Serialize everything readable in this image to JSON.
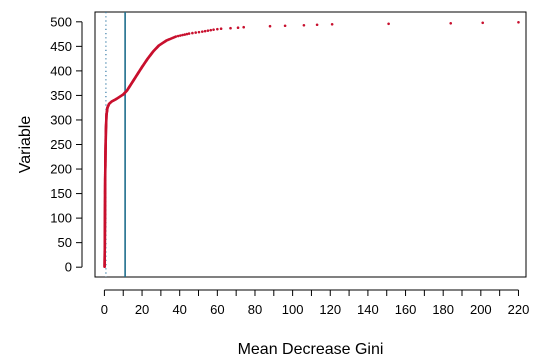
{
  "chart_data": {
    "type": "scatter",
    "title": "",
    "xlabel": "Mean Decrease Gini",
    "ylabel": "Variable",
    "xlim": [
      -5,
      224
    ],
    "ylim": [
      -20,
      520
    ],
    "x_ticks": [
      0,
      10,
      20,
      30,
      40,
      50,
      60,
      70,
      80,
      90,
      100,
      110,
      120,
      130,
      140,
      150,
      160,
      170,
      180,
      190,
      200,
      210,
      220
    ],
    "x_tick_labels": [
      "0",
      "20",
      "40",
      "60",
      "80",
      "100",
      "120",
      "140",
      "160",
      "180",
      "200",
      "220"
    ],
    "y_ticks": [
      0,
      50,
      100,
      150,
      200,
      250,
      300,
      350,
      400,
      450,
      500
    ],
    "y_tick_labels": [
      "0",
      "50",
      "100",
      "150",
      "200",
      "250",
      "300",
      "350",
      "400",
      "450",
      "500"
    ],
    "grid": false,
    "legend": "none",
    "reference_lines": [
      {
        "orientation": "vertical",
        "x": 0.8,
        "style": "dotted",
        "color": "#3a7ea8"
      },
      {
        "orientation": "vertical",
        "x": 11,
        "style": "solid",
        "color": "#1f6e8c"
      }
    ],
    "series": [
      {
        "color": "#c8102e",
        "marker": "point",
        "note_points": "sorted importance curve; control points of the curve plus isolated tail points",
        "curve": [
          [
            0.1,
            1
          ],
          [
            0.2,
            40
          ],
          [
            0.3,
            100
          ],
          [
            0.4,
            180
          ],
          [
            0.6,
            240
          ],
          [
            0.8,
            280
          ],
          [
            1.1,
            310
          ],
          [
            1.6,
            325
          ],
          [
            2.5,
            333
          ],
          [
            4,
            338
          ],
          [
            6,
            342
          ],
          [
            8,
            347
          ],
          [
            10,
            352
          ],
          [
            12,
            360
          ],
          [
            14,
            372
          ],
          [
            17,
            390
          ],
          [
            20,
            408
          ],
          [
            23,
            425
          ],
          [
            26,
            440
          ],
          [
            29,
            452
          ],
          [
            33,
            462
          ],
          [
            38,
            470
          ],
          [
            45,
            476
          ],
          [
            52,
            480
          ],
          [
            58,
            484
          ],
          [
            62,
            486
          ]
        ],
        "tail": [
          [
            67,
            487
          ],
          [
            71,
            488
          ],
          [
            74,
            489
          ],
          [
            88,
            491
          ],
          [
            96,
            492
          ],
          [
            106,
            493
          ],
          [
            113,
            494
          ],
          [
            121,
            495
          ],
          [
            151,
            496
          ],
          [
            184,
            497
          ],
          [
            201,
            498
          ],
          [
            220,
            499
          ]
        ]
      }
    ]
  }
}
